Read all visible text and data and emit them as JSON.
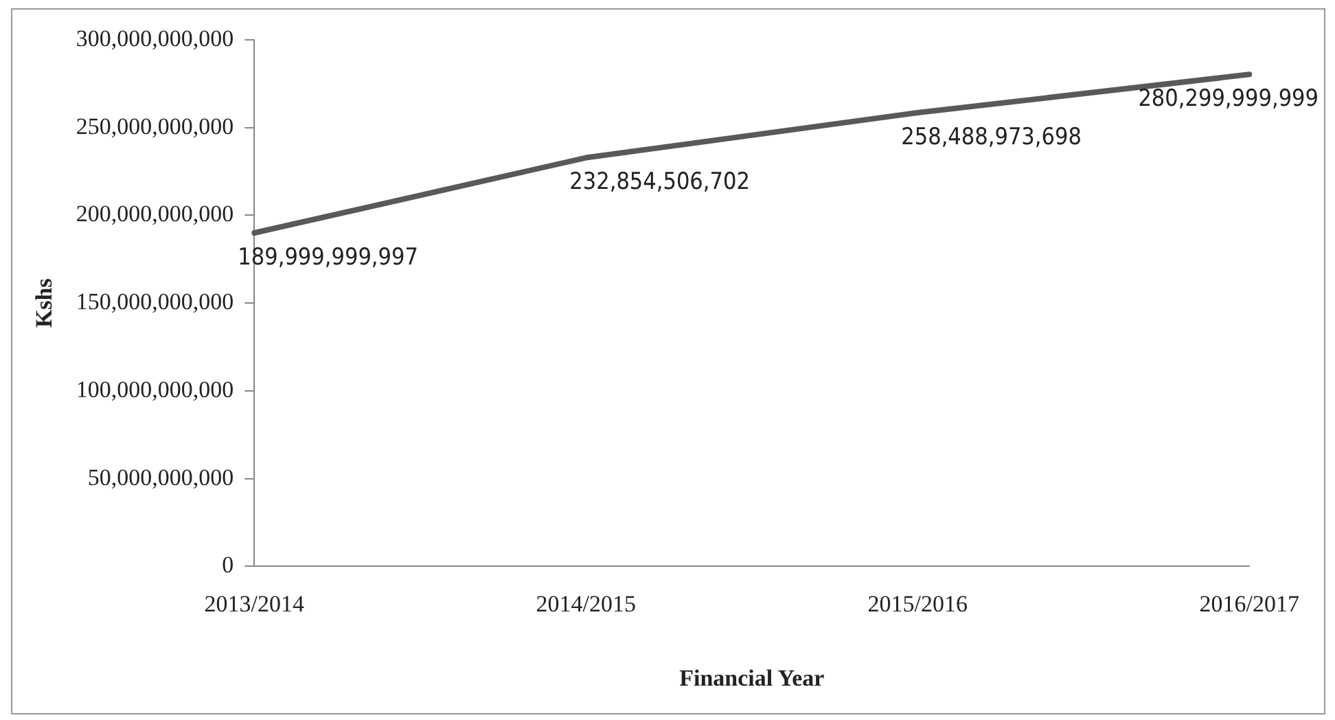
{
  "chart_data": {
    "type": "line",
    "xlabel": "Financial Year",
    "ylabel": "Kshs",
    "categories": [
      "2013/2014",
      "2014/2015",
      "2015/2016",
      "2016/2017"
    ],
    "series": [
      {
        "color": "#595959",
        "values": [
          189999999997,
          232854506702,
          258488973698,
          280299999999
        ],
        "value_labels": [
          "189,999,999,997",
          "232,854,506,702",
          "258,488,973,698",
          "280,299,999,999"
        ]
      }
    ],
    "ylim": [
      0,
      300000000000
    ],
    "yticks": [
      0,
      {
        "value": 50000000000,
        "label": "50,000,000,000"
      },
      {
        "value": 100000000000,
        "label": "100,000,000,000"
      },
      {
        "value": 150000000000,
        "label": "150,000,000,000"
      },
      {
        "value": 200000000000,
        "label": "200,000,000,000"
      },
      {
        "value": 250000000000,
        "label": "250,000,000,000"
      },
      {
        "value": 300000000000,
        "label": "300,000,000,000"
      }
    ],
    "grid": false,
    "legend": false,
    "marker": "none",
    "line_style": "solid"
  }
}
